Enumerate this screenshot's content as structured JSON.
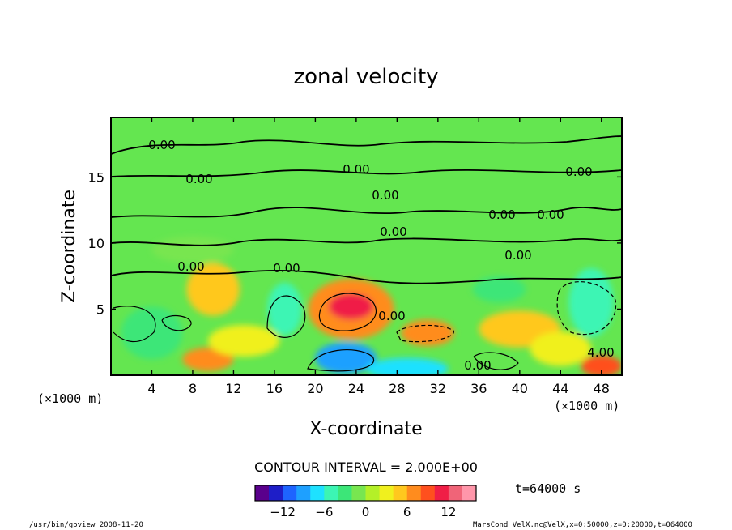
{
  "chart_data": {
    "type": "heatmap",
    "title": "zonal velocity",
    "xlabel": "X-coordinate",
    "ylabel": "Z-coordinate",
    "x_unit_label": "(×1000 m)",
    "y_unit_label": "(×1000 m)",
    "xlim": [
      0,
      50
    ],
    "ylim": [
      0,
      19.5
    ],
    "x_ticks": [
      4,
      8,
      12,
      16,
      20,
      24,
      28,
      32,
      36,
      40,
      44,
      48
    ],
    "y_ticks": [
      5,
      10,
      15
    ],
    "contour_interval_label": "CONTOUR INTERVAL = 2.000E+00",
    "time_label": "t=64000 s",
    "colorbar": {
      "range": [
        -16,
        16
      ],
      "ticks": [
        -12,
        -6,
        0,
        6,
        12
      ],
      "colors": [
        "#5a008c",
        "#1e1ec8",
        "#1e64ff",
        "#1ea0ff",
        "#1ee1ff",
        "#3cf5b4",
        "#3ce678",
        "#78e650",
        "#b4f028",
        "#f0f01e",
        "#ffc81e",
        "#ff8c1e",
        "#ff501e",
        "#f01e46",
        "#f06478",
        "#ff96aa"
      ]
    },
    "contour_labels": [
      "0.00",
      "0.00",
      "0.00",
      "0.00",
      "0.00",
      "0.00",
      "0.00",
      "0.00",
      "0.00",
      "0.00",
      "0.00",
      "4.00",
      "0.00",
      "0.00"
    ],
    "features": [
      {
        "x": 23.5,
        "z": 5.2,
        "value": 10,
        "note": "maximum"
      },
      {
        "x": 31,
        "z": 3.3,
        "value": 6
      },
      {
        "x": 48,
        "z": 0.6,
        "value": 8
      },
      {
        "x": 4,
        "z": 3.0,
        "value": -5
      },
      {
        "x": 17,
        "z": 5.2,
        "value": -6
      },
      {
        "x": 23,
        "z": 1.4,
        "value": -10
      },
      {
        "x": 29,
        "z": 0.4,
        "value": -8
      },
      {
        "x": 47,
        "z": 5.5,
        "value": -5
      }
    ]
  },
  "footer": {
    "left": "/usr/bin/gpview   2008-11-20",
    "right": "MarsCond_VelX.nc@VelX,x=0:50000,z=0:20000,t=064000"
  }
}
